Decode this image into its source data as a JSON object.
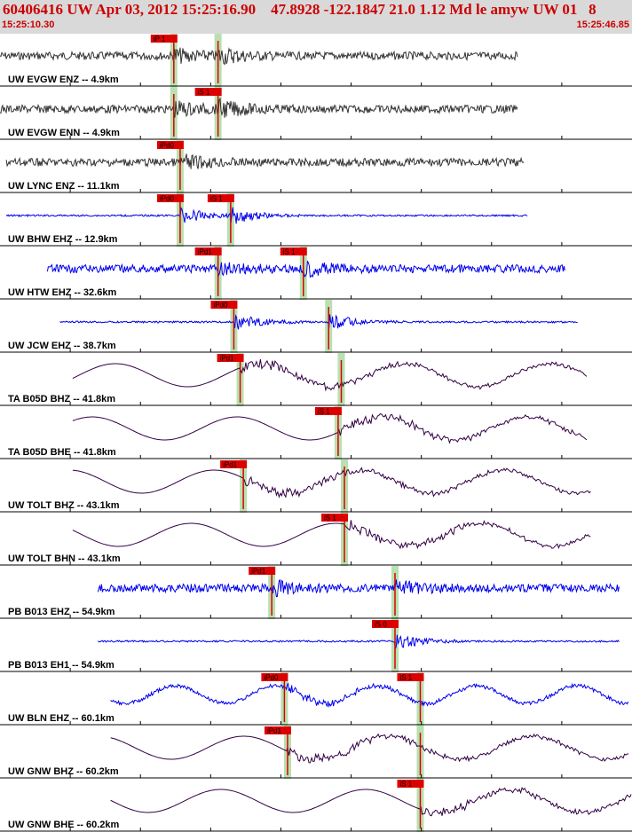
{
  "header": {
    "title": "60406416 UW Apr 03, 2012 15:25:16.90    47.8928 -122.1847 21.0 1.12 Md le amyw UW 01   8",
    "start_time": "15:25:10.30",
    "end_time": "15:25:46.85"
  },
  "colors": {
    "header_bg": "#d9d9d9",
    "header_text": "#cc0000",
    "trace_black": "#333333",
    "trace_blue": "#0000ee",
    "trace_purple": "#330044",
    "pick_red": "#dd0000",
    "pick_band": "#b8e0b0"
  },
  "chart_data": {
    "type": "seismogram",
    "time_range": [
      "15:25:10.30",
      "15:25:46.85"
    ],
    "traces": [
      {
        "label": "UW EVGW ENZ -- 4.9km",
        "color": "black",
        "style": "noise",
        "t_start": 0.0,
        "t_end": 0.82,
        "picks": [
          {
            "label": "iP 1",
            "t": 0.275
          },
          {
            "label": "",
            "t": 0.345
          }
        ]
      },
      {
        "label": "UW EVGW ENN -- 4.9km",
        "color": "black",
        "style": "noise",
        "t_start": 0.0,
        "t_end": 0.82,
        "picks": [
          {
            "label": "",
            "t": 0.275
          },
          {
            "label": "iS 1",
            "t": 0.345
          }
        ]
      },
      {
        "label": "UW LYNC ENZ -- 11.1km",
        "color": "black",
        "style": "noise",
        "t_start": 0.01,
        "t_end": 0.83,
        "picks": [
          {
            "label": "iPd0",
            "t": 0.285
          }
        ]
      },
      {
        "label": "UW BHW EHZ -- 12.9km",
        "color": "blue",
        "style": "quiet",
        "t_start": 0.01,
        "t_end": 0.835,
        "picks": [
          {
            "label": "iPd0",
            "t": 0.285
          },
          {
            "label": "iS 1",
            "t": 0.365
          }
        ]
      },
      {
        "label": "UW HTW EHZ -- 32.6km",
        "color": "blue",
        "style": "noise",
        "t_start": 0.075,
        "t_end": 0.895,
        "picks": [
          {
            "label": "iPd1",
            "t": 0.345
          },
          {
            "label": "iS 1",
            "t": 0.48
          }
        ]
      },
      {
        "label": "UW JCW EHZ -- 38.7km",
        "color": "blue",
        "style": "quiet",
        "t_start": 0.095,
        "t_end": 0.915,
        "picks": [
          {
            "label": "iPd0",
            "t": 0.37
          },
          {
            "label": "",
            "t": 0.52
          }
        ]
      },
      {
        "label": "TA B05D BHZ -- 41.8km",
        "color": "purple",
        "style": "wave",
        "t_start": 0.115,
        "t_end": 0.93,
        "picks": [
          {
            "label": "iPd1",
            "t": 0.38
          },
          {
            "label": "",
            "t": 0.54
          }
        ]
      },
      {
        "label": "TA B05D BHE -- 41.8km",
        "color": "purple",
        "style": "wave",
        "t_start": 0.115,
        "t_end": 0.93,
        "picks": [
          {
            "label": "iS 1",
            "t": 0.535
          }
        ]
      },
      {
        "label": "UW TOLT BHZ -- 43.1km",
        "color": "purple",
        "style": "wave",
        "t_start": 0.115,
        "t_end": 0.935,
        "picks": [
          {
            "label": "iPd1",
            "t": 0.385
          },
          {
            "label": "",
            "t": 0.545
          }
        ]
      },
      {
        "label": "UW TOLT BHN -- 43.1km",
        "color": "purple",
        "style": "wave",
        "t_start": 0.115,
        "t_end": 0.935,
        "picks": [
          {
            "label": "iS 1",
            "t": 0.545
          }
        ]
      },
      {
        "label": "PB B013 EHZ -- 54.9km",
        "color": "blue",
        "style": "noise",
        "t_start": 0.155,
        "t_end": 0.98,
        "picks": [
          {
            "label": "iPd1",
            "t": 0.43
          },
          {
            "label": "",
            "t": 0.625
          }
        ]
      },
      {
        "label": "PB B013 EH1 -- 54.9km",
        "color": "blue",
        "style": "quiet",
        "t_start": 0.155,
        "t_end": 0.98,
        "picks": [
          {
            "label": "iS 0",
            "t": 0.625
          }
        ]
      },
      {
        "label": "UW BLN EHZ -- 60.1km",
        "color": "blue",
        "style": "wavy",
        "t_start": 0.175,
        "t_end": 0.995,
        "picks": [
          {
            "label": "iPd0",
            "t": 0.45
          },
          {
            "label": "iS 1",
            "t": 0.665
          }
        ]
      },
      {
        "label": "UW GNW BHZ -- 60.2km",
        "color": "purple",
        "style": "wave",
        "t_start": 0.175,
        "t_end": 0.995,
        "picks": [
          {
            "label": "iPd1",
            "t": 0.455
          },
          {
            "label": "",
            "t": 0.665
          }
        ]
      },
      {
        "label": "UW GNW BHE -- 60.2km",
        "color": "purple",
        "style": "wave",
        "t_start": 0.175,
        "t_end": 1.0,
        "picks": [
          {
            "label": "iS 1",
            "t": 0.665
          }
        ]
      }
    ]
  }
}
